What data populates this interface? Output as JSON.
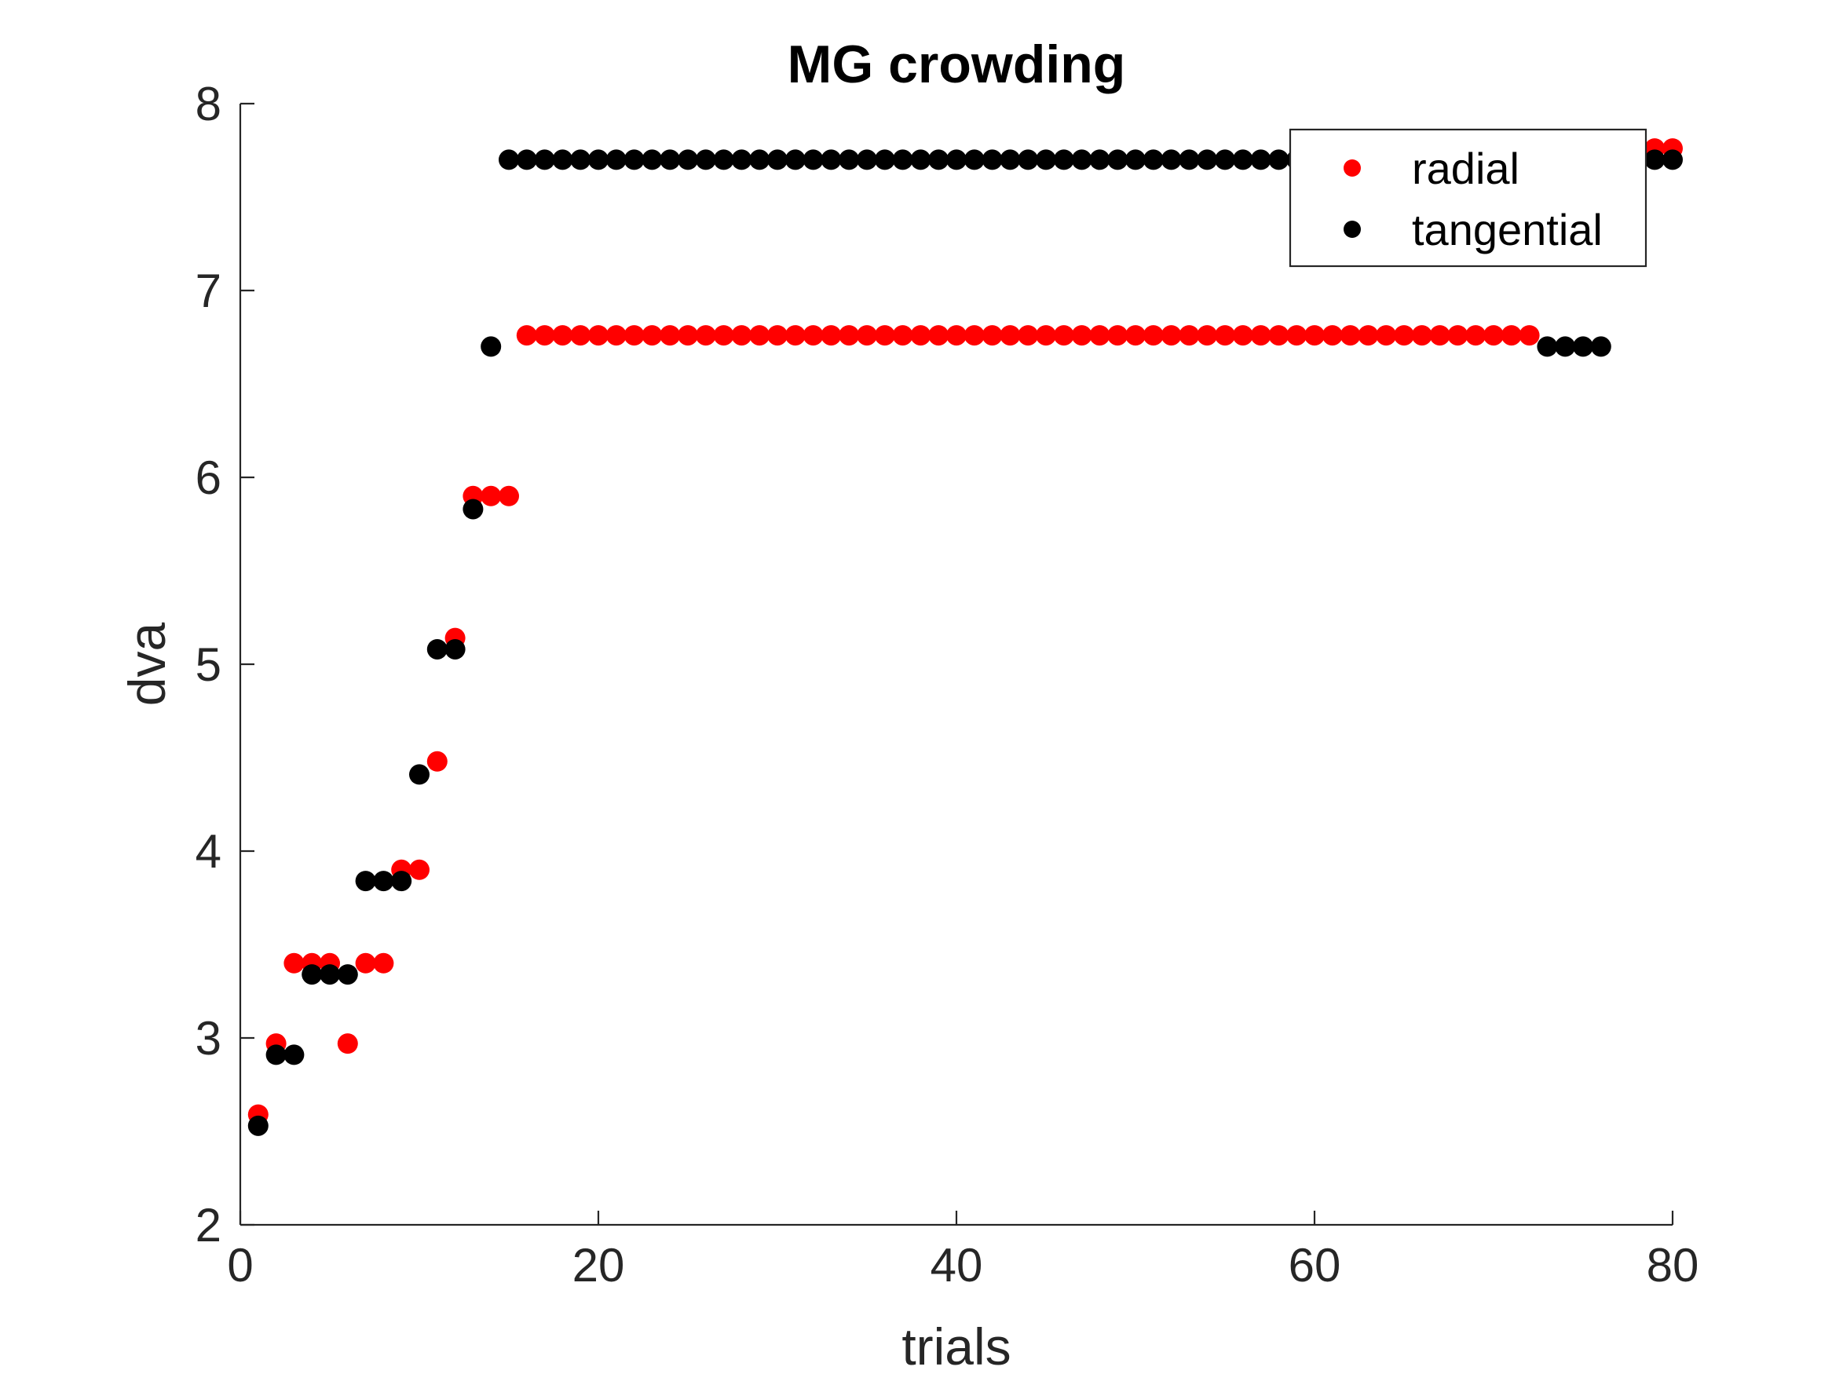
{
  "chart_data": {
    "type": "scatter",
    "title": "MG crowding",
    "xlabel": "trials",
    "ylabel": "dva",
    "xlim": [
      0,
      80
    ],
    "ylim": [
      2,
      8
    ],
    "xticks": [
      "0",
      "20",
      "40",
      "60",
      "80"
    ],
    "yticks": [
      "2",
      "3",
      "4",
      "5",
      "6",
      "7",
      "8"
    ],
    "grid": false,
    "legend_position": "top-right",
    "series": [
      {
        "name": "radial",
        "color": "#ff0000",
        "x": [
          1,
          2,
          3,
          4,
          5,
          6,
          7,
          8,
          9,
          10,
          11,
          12,
          13,
          14,
          15,
          16,
          17,
          18,
          19,
          20,
          21,
          22,
          23,
          24,
          25,
          26,
          27,
          28,
          29,
          30,
          31,
          32,
          33,
          34,
          35,
          36,
          37,
          38,
          39,
          40,
          41,
          42,
          43,
          44,
          45,
          46,
          47,
          48,
          49,
          50,
          51,
          52,
          53,
          54,
          55,
          56,
          57,
          58,
          59,
          60,
          61,
          62,
          63,
          64,
          65,
          66,
          67,
          68,
          69,
          70,
          71,
          72,
          73,
          74,
          75,
          76,
          77,
          78,
          79,
          80
        ],
        "y": [
          2.59,
          2.97,
          3.4,
          3.4,
          3.4,
          2.97,
          3.4,
          3.4,
          3.9,
          3.9,
          4.48,
          5.14,
          5.9,
          5.9,
          5.9,
          6.76,
          6.76,
          6.76,
          6.76,
          6.76,
          6.76,
          6.76,
          6.76,
          6.76,
          6.76,
          6.76,
          6.76,
          6.76,
          6.76,
          6.76,
          6.76,
          6.76,
          6.76,
          6.76,
          6.76,
          6.76,
          6.76,
          6.76,
          6.76,
          6.76,
          6.76,
          6.76,
          6.76,
          6.76,
          6.76,
          6.76,
          6.76,
          6.76,
          6.76,
          6.76,
          6.76,
          6.76,
          6.76,
          6.76,
          6.76,
          6.76,
          6.76,
          6.76,
          6.76,
          6.76,
          6.76,
          6.76,
          6.76,
          6.76,
          6.76,
          6.76,
          6.76,
          6.76,
          6.76,
          6.76,
          6.76,
          6.76,
          7.76,
          7.76,
          7.76,
          7.76,
          7.76,
          7.76,
          7.76,
          7.76
        ]
      },
      {
        "name": "tangential",
        "color": "#000000",
        "x": [
          1,
          2,
          3,
          4,
          5,
          6,
          7,
          8,
          9,
          10,
          11,
          12,
          13,
          14,
          15,
          16,
          17,
          18,
          19,
          20,
          21,
          22,
          23,
          24,
          25,
          26,
          27,
          28,
          29,
          30,
          31,
          32,
          33,
          34,
          35,
          36,
          37,
          38,
          39,
          40,
          41,
          42,
          43,
          44,
          45,
          46,
          47,
          48,
          49,
          50,
          51,
          52,
          53,
          54,
          55,
          56,
          57,
          58,
          59,
          60,
          61,
          62,
          63,
          64,
          65,
          66,
          67,
          68,
          69,
          70,
          71,
          72,
          73,
          74,
          75,
          76,
          77,
          78,
          79,
          80
        ],
        "y": [
          2.53,
          2.91,
          2.91,
          3.34,
          3.34,
          3.34,
          3.84,
          3.84,
          3.84,
          4.41,
          5.08,
          5.08,
          5.83,
          6.7,
          7.7,
          7.7,
          7.7,
          7.7,
          7.7,
          7.7,
          7.7,
          7.7,
          7.7,
          7.7,
          7.7,
          7.7,
          7.7,
          7.7,
          7.7,
          7.7,
          7.7,
          7.7,
          7.7,
          7.7,
          7.7,
          7.7,
          7.7,
          7.7,
          7.7,
          7.7,
          7.7,
          7.7,
          7.7,
          7.7,
          7.7,
          7.7,
          7.7,
          7.7,
          7.7,
          7.7,
          7.7,
          7.7,
          7.7,
          7.7,
          7.7,
          7.7,
          7.7,
          7.7,
          7.7,
          7.7,
          7.7,
          7.7,
          7.7,
          7.7,
          7.7,
          7.7,
          7.7,
          7.7,
          7.7,
          7.7,
          7.7,
          7.7,
          6.7,
          6.7,
          6.7,
          6.7,
          7.7,
          7.7,
          7.7,
          7.7
        ]
      }
    ]
  }
}
